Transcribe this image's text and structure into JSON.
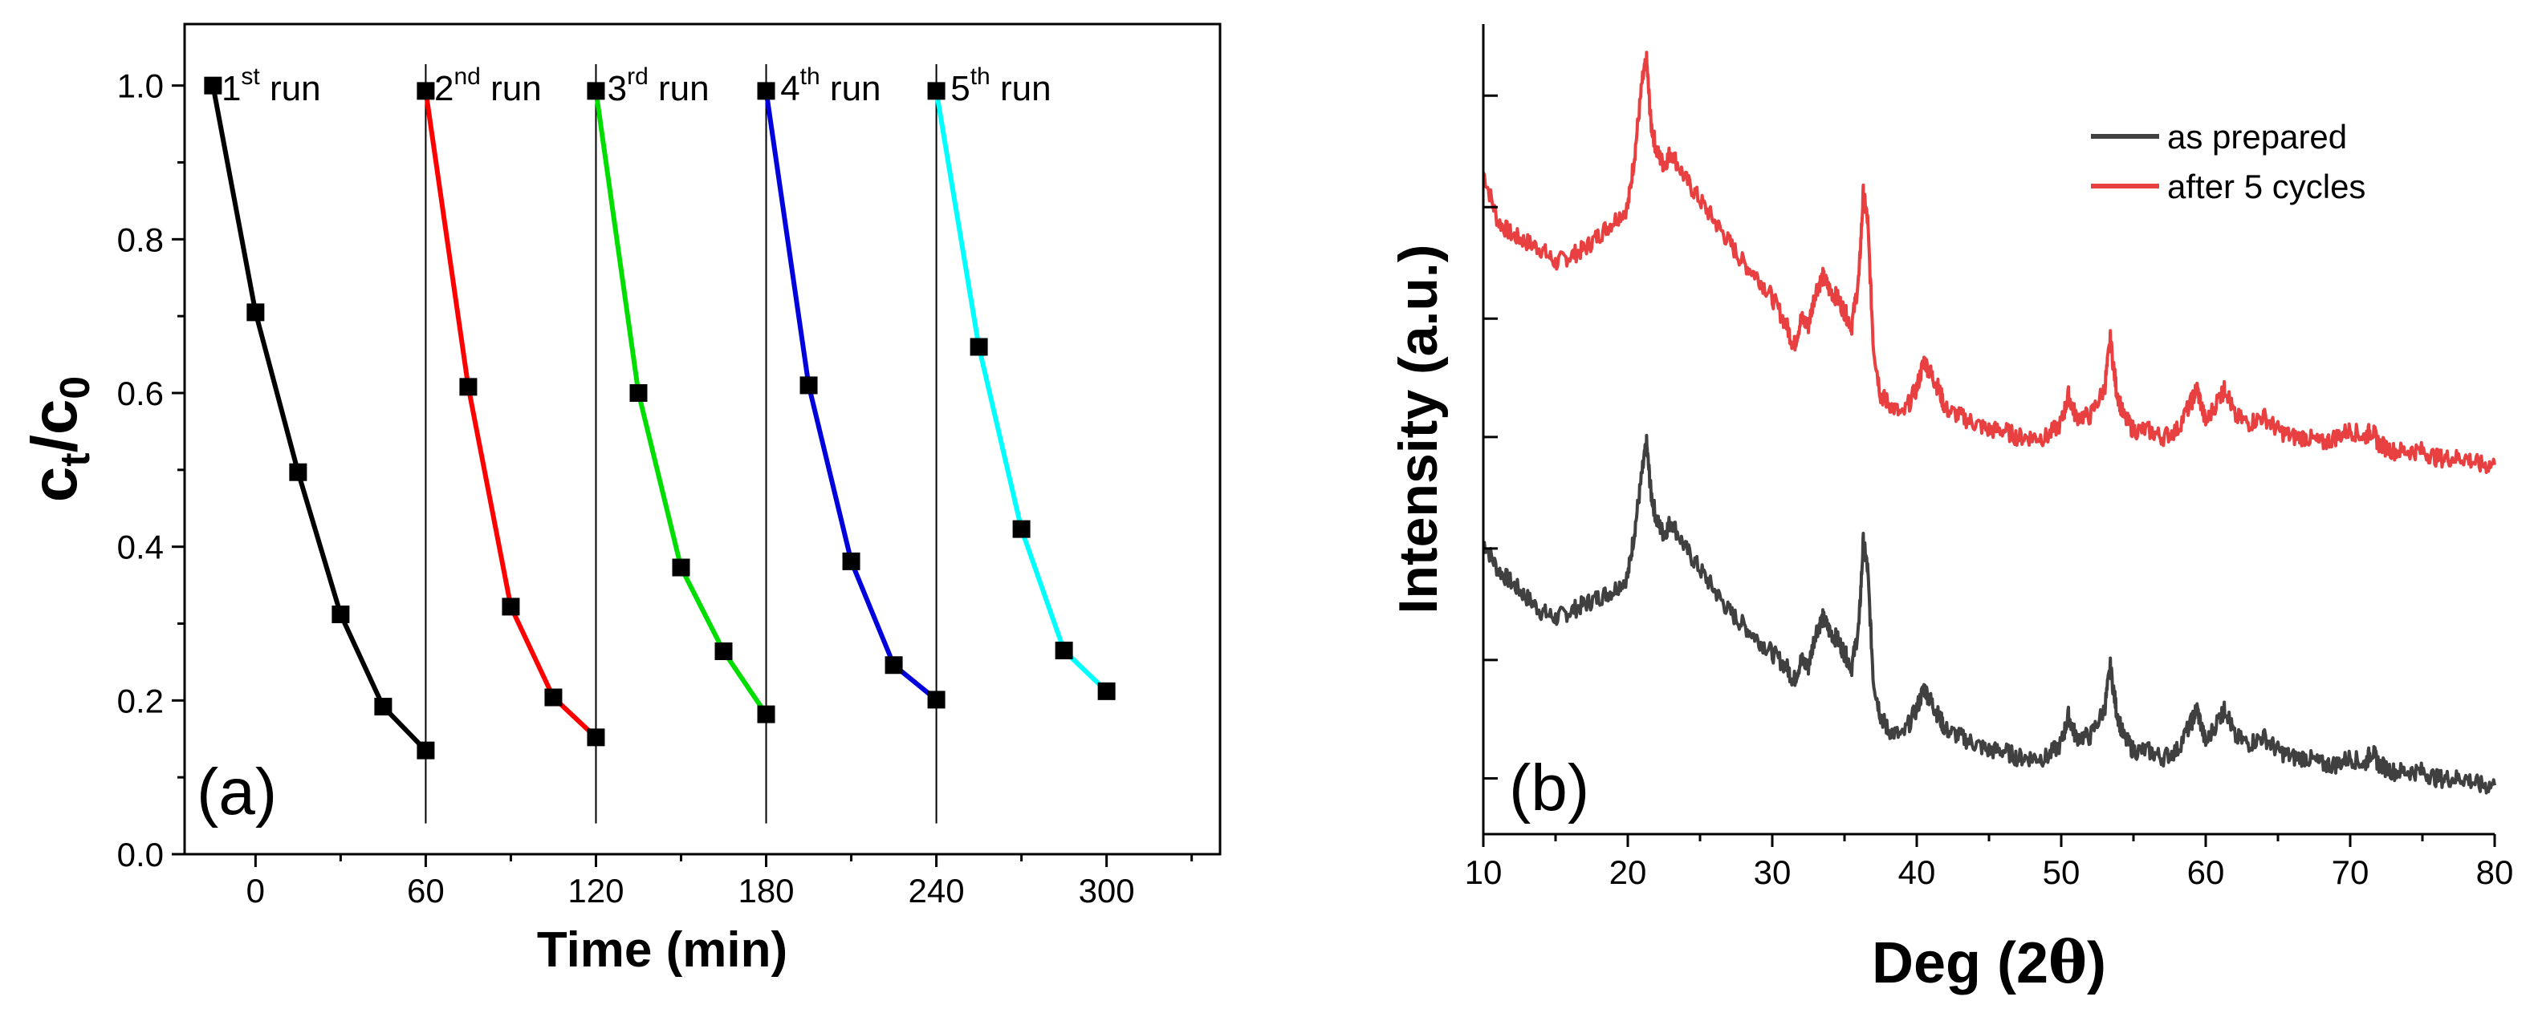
{
  "chart_data": [
    {
      "type": "line",
      "panel": "(a)",
      "xlabel": "Time (min)",
      "ylabel_main": "c",
      "ylabel_sub1": "t",
      "ylabel_sep": "/c",
      "ylabel_sub2": "0",
      "xlim": [
        -25,
        340
      ],
      "ylim": [
        0.0,
        1.08
      ],
      "xticks": [
        0,
        60,
        120,
        180,
        240,
        300
      ],
      "yticks": [
        0.0,
        0.2,
        0.4,
        0.6,
        0.8,
        1.0
      ],
      "xtick_labels": [
        "0",
        "60",
        "120",
        "180",
        "240",
        "300"
      ],
      "ytick_labels": [
        "0.0",
        "0.2",
        "0.4",
        "0.6",
        "0.8",
        "1.0"
      ],
      "dividers": [
        60,
        120,
        180,
        240
      ],
      "marker": "square",
      "marker_color": "#000000",
      "series": [
        {
          "name": "1st run",
          "label_main": "1",
          "label_sup": "st",
          "label_tail": " run",
          "label_x": -12,
          "color": "#000000",
          "x": [
            -15,
            0,
            15,
            30,
            45,
            60
          ],
          "y": [
            1.0,
            0.705,
            0.497,
            0.312,
            0.192,
            0.135
          ]
        },
        {
          "name": "2nd run",
          "label_main": "2",
          "label_sup": "nd",
          "label_tail": " run",
          "label_x": 63,
          "color": "#ff0000",
          "x": [
            60,
            75,
            90,
            105,
            120
          ],
          "y": [
            0.993,
            0.608,
            0.322,
            0.204,
            0.152
          ]
        },
        {
          "name": "3rd run",
          "label_main": "3",
          "label_sup": "rd",
          "label_tail": " run",
          "label_x": 124,
          "color": "#00dd00",
          "x": [
            120,
            135,
            150,
            165,
            180
          ],
          "y": [
            0.993,
            0.6,
            0.373,
            0.264,
            0.182
          ]
        },
        {
          "name": "4th run",
          "label_main": "4",
          "label_sup": "th",
          "label_tail": " run",
          "label_x": 185,
          "color": "#0000dd",
          "x": [
            180,
            195,
            210,
            225,
            240
          ],
          "y": [
            0.993,
            0.61,
            0.381,
            0.246,
            0.201
          ]
        },
        {
          "name": "5th run",
          "label_main": "5",
          "label_sup": "th",
          "label_tail": " run",
          "label_x": 245,
          "color": "#00ffff",
          "x": [
            240,
            255,
            270,
            285,
            300
          ],
          "y": [
            0.993,
            0.66,
            0.423,
            0.265,
            0.212
          ]
        }
      ]
    },
    {
      "type": "line",
      "panel": "(b)",
      "xlabel_main": "Deg (2",
      "xlabel_theta": "θ",
      "xlabel_close": ")",
      "ylabel": "Intensity (a.u.)",
      "xlim": [
        10,
        80
      ],
      "ylim": [
        0,
        100
      ],
      "xticks": [
        10,
        20,
        30,
        40,
        50,
        60,
        70,
        80
      ],
      "xtick_labels": [
        "10",
        "20",
        "30",
        "40",
        "50",
        "60",
        "70",
        "80"
      ],
      "yticks_unlabeled": [
        8,
        25,
        41,
        57,
        74,
        90,
        106
      ],
      "legend_position": "top-right",
      "series": [
        {
          "name": "as prepared",
          "color": "#404040",
          "x": [
            10,
            11,
            12,
            13,
            14,
            15,
            16,
            17,
            18,
            19,
            20,
            20.5,
            21,
            21.3,
            21.6,
            22,
            22.5,
            23,
            24,
            25,
            26,
            27,
            28,
            29,
            30,
            31,
            31.5,
            32,
            32.5,
            33,
            33.5,
            34,
            34.5,
            35,
            35.5,
            36,
            36.3,
            36.6,
            37,
            37.5,
            38,
            39,
            40,
            40.5,
            41,
            41.5,
            42,
            43,
            44,
            45,
            46,
            47,
            48,
            49,
            50,
            50.5,
            51,
            52,
            53,
            53.4,
            53.8,
            54.3,
            55,
            56,
            57,
            58,
            59,
            59.4,
            60,
            61,
            61.4,
            62,
            63,
            64,
            65,
            66,
            67,
            68,
            69,
            70,
            71,
            71.5,
            72,
            73,
            74,
            75,
            76,
            77,
            78,
            79,
            80
          ],
          "y": [
            42,
            38,
            36,
            34,
            32,
            31,
            32,
            33,
            34,
            35,
            37,
            44,
            52,
            56,
            49,
            45,
            43,
            45,
            41,
            38,
            35,
            32,
            30,
            28,
            26,
            24,
            22,
            25,
            24,
            29,
            31,
            29,
            28,
            26,
            24,
            30,
            42,
            38,
            22,
            17,
            15,
            14,
            18,
            21,
            19,
            17,
            15,
            14,
            13,
            12,
            12,
            11,
            11,
            11,
            13,
            17,
            14,
            14,
            18,
            24,
            18,
            14,
            12,
            12,
            11,
            12,
            16,
            18,
            13,
            17,
            18,
            14,
            13,
            14,
            12,
            11,
            11,
            10,
            10,
            11,
            10,
            12,
            10,
            9,
            9,
            9,
            8,
            8,
            8,
            7,
            7
          ]
        },
        {
          "name": "after 5 cycles",
          "color": "#e84040",
          "x": [
            10,
            11,
            12,
            13,
            14,
            15,
            16,
            17,
            18,
            19,
            20,
            20.5,
            21,
            21.3,
            21.6,
            22,
            22.5,
            23,
            24,
            25,
            26,
            27,
            28,
            29,
            30,
            31,
            31.5,
            32,
            32.5,
            33,
            33.5,
            34,
            34.5,
            35,
            35.5,
            36,
            36.3,
            36.6,
            37,
            37.5,
            38,
            39,
            40,
            40.5,
            41,
            41.5,
            42,
            43,
            44,
            45,
            46,
            47,
            48,
            49,
            50,
            50.5,
            51,
            52,
            53,
            53.4,
            53.8,
            54.3,
            55,
            56,
            57,
            58,
            59,
            59.4,
            60,
            61,
            61.4,
            62,
            63,
            64,
            65,
            66,
            67,
            68,
            69,
            70,
            71,
            71.5,
            72,
            73,
            74,
            75,
            76,
            77,
            78,
            79,
            80
          ],
          "y": [
            95,
            88,
            86,
            85,
            84,
            82,
            83,
            84,
            86,
            88,
            90,
            98,
            108,
            111,
            102,
            98,
            96,
            98,
            94,
            91,
            88,
            85,
            82,
            80,
            77,
            73,
            70,
            74,
            73,
            78,
            80,
            78,
            77,
            75,
            73,
            80,
            92,
            88,
            70,
            63,
            62,
            60,
            64,
            68,
            66,
            64,
            61,
            60,
            59,
            58,
            58,
            57,
            57,
            57,
            59,
            63,
            60,
            60,
            64,
            71,
            64,
            60,
            58,
            58,
            57,
            58,
            62,
            64,
            59,
            63,
            64,
            60,
            59,
            60,
            58,
            57,
            57,
            56,
            57,
            58,
            57,
            58,
            56,
            55,
            55,
            55,
            54,
            54,
            54,
            53,
            53
          ]
        }
      ]
    }
  ]
}
